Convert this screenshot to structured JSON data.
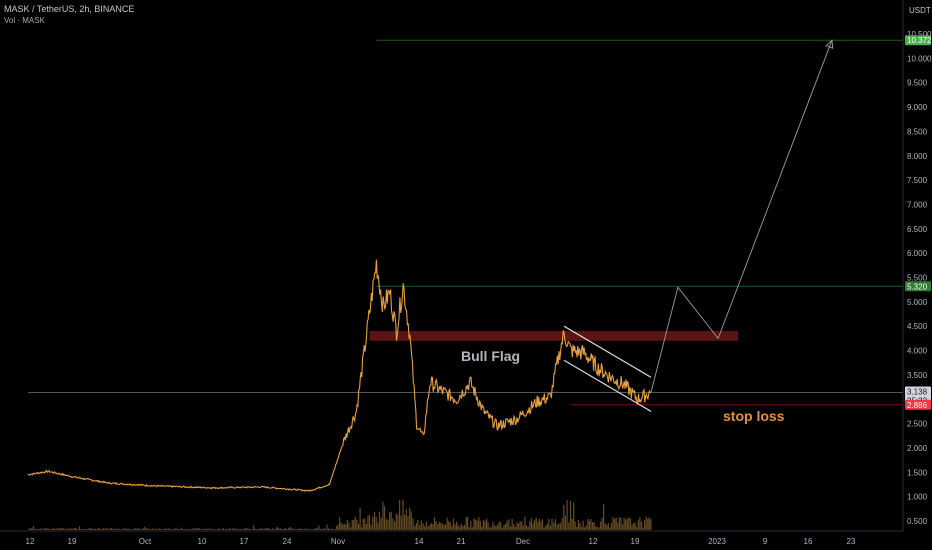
{
  "header": {
    "symbol_line": "MASK / TetherUS, 2h, BINANCE",
    "volume_line": "Vol · MASK"
  },
  "currency": "USDT",
  "chart_data": {
    "type": "candlestick",
    "title": "MASK / TetherUS, 2h, BINANCE",
    "y_axis": {
      "ticks": [
        "10.500",
        "10.000",
        "9.500",
        "9.000",
        "8.500",
        "8.000",
        "7.500",
        "7.000",
        "6.500",
        "6.000",
        "5.500",
        "5.000",
        "4.500",
        "4.000",
        "3.500",
        "3.000",
        "2.500",
        "2.000",
        "1.500",
        "1.000",
        "0.500"
      ],
      "range": [
        0.45,
        10.6
      ]
    },
    "x_axis": {
      "ticks": [
        "12",
        "19",
        "Oct",
        "10",
        "17",
        "24",
        "Nov",
        "14",
        "21",
        "Dec",
        "12",
        "19",
        "2023",
        "9",
        "16",
        "23"
      ]
    },
    "price_series": [
      {
        "label": "Sep 12",
        "price": 1.45
      },
      {
        "label": "Sep 15",
        "price": 1.52
      },
      {
        "label": "Sep 19",
        "price": 1.4
      },
      {
        "label": "Sep 24",
        "price": 1.28
      },
      {
        "label": "Oct 1",
        "price": 1.22
      },
      {
        "label": "Oct 10",
        "price": 1.18
      },
      {
        "label": "Oct 17",
        "price": 1.2
      },
      {
        "label": "Oct 24",
        "price": 1.12
      },
      {
        "label": "Oct 27",
        "price": 1.25
      },
      {
        "label": "Oct 29",
        "price": 2.1
      },
      {
        "label": "Oct 31",
        "price": 2.75
      },
      {
        "label": "Nov 2",
        "price": 4.8
      },
      {
        "label": "Nov 3",
        "price": 5.8
      },
      {
        "label": "Nov 4",
        "price": 4.9
      },
      {
        "label": "Nov 5",
        "price": 5.2
      },
      {
        "label": "Nov 6",
        "price": 4.4
      },
      {
        "label": "Nov 7",
        "price": 5.35
      },
      {
        "label": "Nov 8",
        "price": 4.3
      },
      {
        "label": "Nov 9",
        "price": 2.5
      },
      {
        "label": "Nov 10",
        "price": 2.2
      },
      {
        "label": "Nov 11",
        "price": 3.35
      },
      {
        "label": "Nov 13",
        "price": 3.15
      },
      {
        "label": "Nov 15",
        "price": 3.0
      },
      {
        "label": "Nov 17",
        "price": 3.35
      },
      {
        "label": "Nov 19",
        "price": 2.75
      },
      {
        "label": "Nov 21",
        "price": 2.45
      },
      {
        "label": "Nov 24",
        "price": 2.6
      },
      {
        "label": "Nov 27",
        "price": 2.95
      },
      {
        "label": "Nov 29",
        "price": 3.05
      },
      {
        "label": "Nov 30",
        "price": 3.75
      },
      {
        "label": "Dec 1",
        "price": 4.35
      },
      {
        "label": "Dec 2",
        "price": 4.0
      },
      {
        "label": "Dec 4",
        "price": 3.95
      },
      {
        "label": "Dec 6",
        "price": 3.65
      },
      {
        "label": "Dec 8",
        "price": 3.45
      },
      {
        "label": "Dec 10",
        "price": 3.3
      },
      {
        "label": "Dec 12",
        "price": 3.0
      },
      {
        "label": "Dec 14",
        "price": 3.14
      }
    ],
    "price_labels": [
      {
        "value": 10.372,
        "text": "10.372",
        "color": "#4caf50"
      },
      {
        "value": 5.32,
        "text": "5.320",
        "color": "#2e7d32"
      },
      {
        "value": 3.138,
        "text": "3.138",
        "sub": "25:32",
        "color": "#d1d4dc"
      },
      {
        "value": 2.886,
        "text": "2.886",
        "color": "#f23645"
      }
    ],
    "horizontal_lines": [
      {
        "value": 10.372,
        "from": "Nov 3",
        "color": "#1b5e20"
      },
      {
        "value": 5.32,
        "from": "Nov 3",
        "color": "#1b5e20"
      },
      {
        "value": 3.138,
        "from": "Sep 12",
        "color": "#555555"
      },
      {
        "value": 2.886,
        "from": "Dec 2",
        "color": "#7a1020"
      }
    ],
    "resistance_zone": {
      "from": "Nov 2",
      "to": "Dec 27",
      "low": 4.2,
      "high": 4.4
    },
    "channel": {
      "upper": [
        {
          "x": "Dec 1",
          "y": 4.5
        },
        {
          "x": "Dec 14",
          "y": 3.45
        }
      ],
      "lower": [
        {
          "x": "Dec 1",
          "y": 3.8
        },
        {
          "x": "Dec 14",
          "y": 2.75
        }
      ]
    },
    "projection": [
      {
        "x": "Dec 14",
        "y": 3.15
      },
      {
        "x": "Dec 18",
        "y": 5.3
      },
      {
        "x": "Dec 24",
        "y": 4.25
      },
      {
        "x": "Jan 10",
        "y": 10.372
      }
    ],
    "annotations": [
      {
        "text": "Bull Flag",
        "color": "#b2b5be"
      },
      {
        "text": "stop loss",
        "color": "#e69138"
      }
    ]
  }
}
